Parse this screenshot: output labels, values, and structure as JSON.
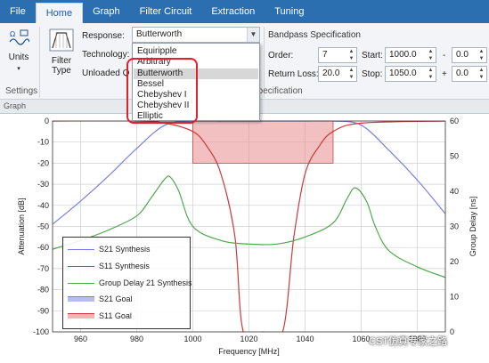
{
  "menu": {
    "tabs": [
      "File",
      "Home",
      "Graph",
      "Filter Circuit",
      "Extraction",
      "Tuning"
    ]
  },
  "ribbon": {
    "units_label": "Units",
    "filter_type_label": "Filter\nType",
    "settings_group": "Settings",
    "graph_group": "Graph",
    "response_label": "Response:",
    "response_value": "Butterworth",
    "technology_label": "Technology:",
    "unloaded_q_label": "Unloaded Q",
    "bandpass_header": "Bandpass Specification",
    "spec_group": "Specification",
    "order_label": "Order:",
    "order_value": "7",
    "return_loss_label": "Return Loss:",
    "return_loss_value": "20.0",
    "start_label": "Start:",
    "start_value": "1000.0",
    "stop_label": "Stop:",
    "stop_value": "1050.0",
    "offset1_sign": "-",
    "offset1_value": "0.0",
    "offset2_sign": "+",
    "offset2_value": "0.0"
  },
  "dropdown": {
    "options": [
      "Equiripple",
      "Arbitrary",
      "Butterworth",
      "Bessel",
      "Chebyshev I",
      "Chebyshev II",
      "Elliptic"
    ],
    "selected": "Butterworth"
  },
  "chart_data": {
    "type": "line",
    "xlabel": "Frequency [MHz]",
    "ylabel": "Attenuation [dB]",
    "y2label": "Group Delay [ns]",
    "xlim": [
      950,
      1090
    ],
    "ylim": [
      -100,
      0
    ],
    "y2lim": [
      0,
      60
    ],
    "x_ticks": [
      960,
      980,
      1000,
      1020,
      1040,
      1060,
      1080
    ],
    "y_ticks": [
      0,
      -10,
      -20,
      -30,
      -40,
      -50,
      -60,
      -70,
      -80,
      -90,
      -100
    ],
    "y2_ticks": [
      60,
      50,
      40,
      30,
      20,
      10,
      0
    ],
    "grid": true,
    "legend_placement": "bottom-left",
    "series": [
      {
        "name": "S21 Synthesis",
        "color": "#7a7ee0",
        "axis": "left",
        "x": [
          950,
          960,
          970,
          980,
          990,
          1000,
          1010,
          1020,
          1030,
          1040,
          1050,
          1060,
          1070,
          1080,
          1090
        ],
        "y": [
          -49,
          -38,
          -26,
          -13,
          -2,
          0,
          0,
          0,
          0,
          0,
          0,
          -2,
          -14,
          -28,
          -44
        ]
      },
      {
        "name": "S11 Synthesis",
        "color": "#cc3a3a",
        "axis": "left",
        "x": [
          950,
          980,
          990,
          1000,
          1005,
          1010,
          1015,
          1018,
          1025,
          1032,
          1036,
          1040,
          1045,
          1050,
          1060,
          1090
        ],
        "y": [
          0,
          0,
          -1,
          -5,
          -12,
          -25,
          -55,
          -100,
          -100,
          -100,
          -55,
          -25,
          -12,
          -5,
          -1,
          0
        ]
      },
      {
        "name": "Group Delay 21 Synthesis",
        "color": "#4fa84f",
        "axis": "right",
        "x": [
          950,
          960,
          970,
          980,
          985,
          990,
          992,
          995,
          1000,
          1010,
          1020,
          1030,
          1040,
          1050,
          1055,
          1058,
          1062,
          1065,
          1070,
          1080,
          1090
        ],
        "y": [
          23.5,
          26,
          29,
          33,
          38,
          43.5,
          44,
          40,
          30,
          26,
          25,
          25,
          27,
          31,
          38,
          41,
          37,
          30,
          23,
          18.5,
          15.5
        ]
      }
    ],
    "goals": [
      {
        "name": "S21 Goal",
        "color": "#8a8ee8"
      },
      {
        "name": "S11 Goal",
        "color": "#e88c8c",
        "x_range": [
          1000,
          1050
        ],
        "y_range": [
          -20,
          0
        ]
      }
    ]
  },
  "watermark": "CST仿真专家之路"
}
